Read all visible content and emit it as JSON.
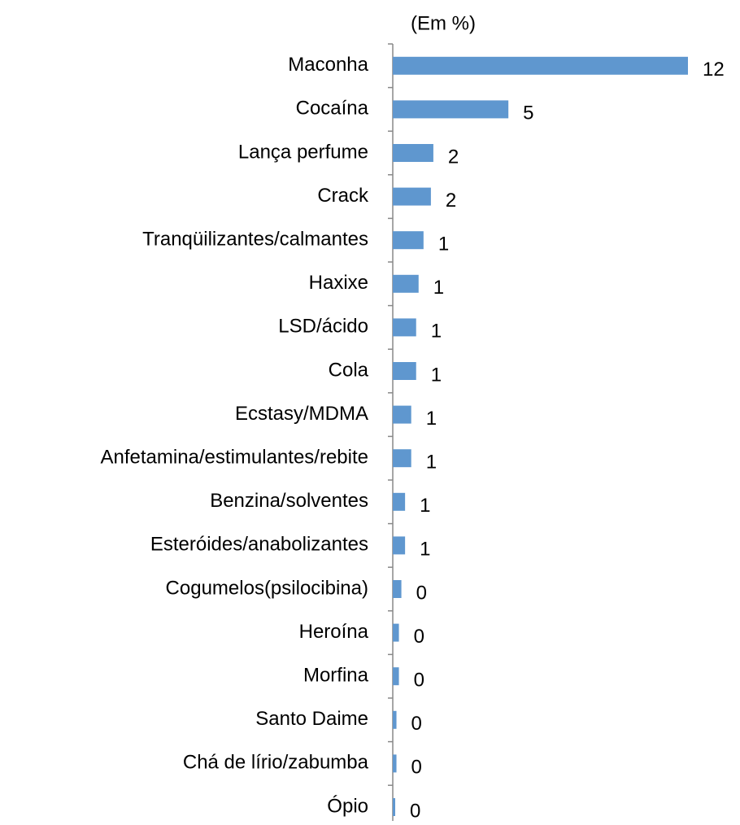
{
  "chart_data": {
    "type": "bar",
    "orientation": "horizontal",
    "subtitle": "(Em %)",
    "categories": [
      "Maconha",
      "Cocaína",
      "Lança perfume",
      "Crack",
      "Tranqüilizantes/calmantes",
      "Haxixe",
      "LSD/ácido",
      "Cola",
      "Ecstasy/MDMA",
      "Anfetamina/estimulantes/rebite",
      "Benzina/solventes",
      "Esteróides/anabolizantes",
      "Cogumelos(psilocibina)",
      "Heroína",
      "Morfina",
      "Santo Daime",
      "Chá de lírio/zabumba",
      "Ópio"
    ],
    "values": [
      12,
      4.7,
      1.65,
      1.55,
      1.25,
      1.05,
      0.95,
      0.95,
      0.75,
      0.75,
      0.5,
      0.5,
      0.35,
      0.25,
      0.25,
      0.15,
      0.15,
      0.07
    ],
    "value_labels": [
      "12",
      "5",
      "2",
      "2",
      "1",
      "1",
      "1",
      "1",
      "1",
      "1",
      "1",
      "1",
      "0",
      "0",
      "0",
      "0",
      "0",
      "0"
    ],
    "xlim": [
      0,
      12
    ],
    "color": "#5f97cf"
  }
}
